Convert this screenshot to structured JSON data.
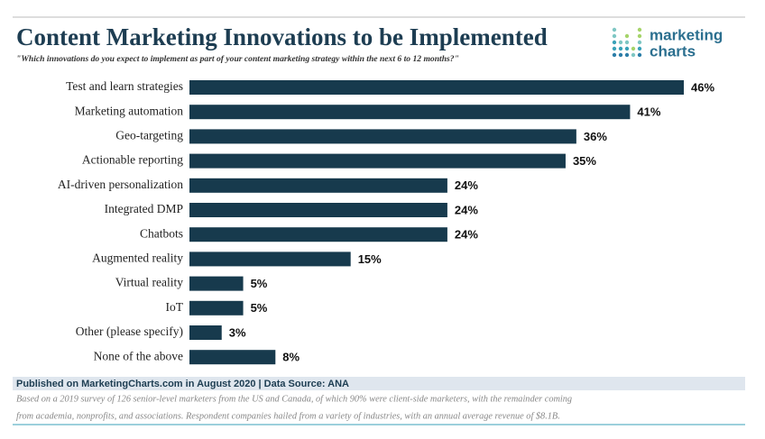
{
  "chart_data": {
    "type": "bar",
    "orientation": "horizontal",
    "title": "Content Marketing Innovations to be Implemented",
    "subtitle": "\"Which innovations do you expect to implement as part of your content marketing strategy within the next 6 to 12 months?\"",
    "categories": [
      "Test and learn strategies",
      "Marketing automation",
      "Geo-targeting",
      "Actionable reporting",
      "AI-driven personalization",
      "Integrated DMP",
      "Chatbots",
      "Augmented reality",
      "Virtual reality",
      "IoT",
      "Other (please specify)",
      "None of the above"
    ],
    "values": [
      46,
      41,
      36,
      35,
      24,
      24,
      24,
      15,
      5,
      5,
      3,
      8
    ],
    "value_labels": [
      "46%",
      "41%",
      "36%",
      "35%",
      "24%",
      "24%",
      "24%",
      "15%",
      "5%",
      "5%",
      "3%",
      "8%"
    ],
    "color": "#173a4d"
  },
  "brand": {
    "line1": "marketing",
    "line2": "charts"
  },
  "footer": {
    "published": "Published on MarketingCharts.com in August 2020 | Data Source: ANA",
    "note": [
      "Based on a 2019 survey of 126 senior-level marketers from the US and Canada, of which 90% were client-side marketers, with the remainder coming",
      "from academia, nonprofits, and associations. Respondent companies hailed from a variety of industries, with an annual average revenue of $8.1B."
    ]
  }
}
